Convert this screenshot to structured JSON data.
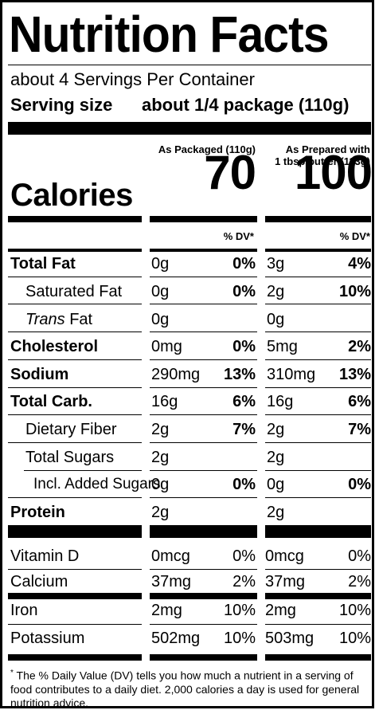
{
  "title": "Nutrition Facts",
  "servings_per_container": "about 4 Servings Per Container",
  "serving_size_label": "Serving size",
  "serving_size_value": "about 1/4 package (110g)",
  "col1_header": "As Packaged (110g)",
  "col2_header_line1": "As Prepared with",
  "col2_header_line2": "1 tbsp butter (113g)",
  "calories_label": "Calories",
  "calories_col1": "70",
  "calories_col2": "100",
  "dv_header": "% DV*",
  "nutrients": [
    {
      "name": "Total Fat",
      "v1": "0g",
      "d1": "0%",
      "v2": "3g",
      "d2": "4%"
    },
    {
      "name": "Saturated Fat",
      "v1": "0g",
      "d1": "0%",
      "v2": "2g",
      "d2": "10%"
    },
    {
      "name_italic": "Trans",
      "name_rest": " Fat",
      "v1": "0g",
      "d1": "",
      "v2": "0g",
      "d2": ""
    },
    {
      "name": "Cholesterol",
      "v1": "0mg",
      "d1": "0%",
      "v2": "5mg",
      "d2": "2%"
    },
    {
      "name": "Sodium",
      "v1": "290mg",
      "d1": "13%",
      "v2": "310mg",
      "d2": "13%"
    },
    {
      "name": "Total Carb.",
      "v1": "16g",
      "d1": "6%",
      "v2": "16g",
      "d2": "6%"
    },
    {
      "name": "Dietary Fiber",
      "v1": "2g",
      "d1": "7%",
      "v2": "2g",
      "d2": "7%"
    },
    {
      "name": "Total Sugars",
      "v1": "2g",
      "d1": "",
      "v2": "2g",
      "d2": ""
    },
    {
      "name": "Incl. Added Sugars",
      "v1": "0g",
      "d1": "0%",
      "v2": "0g",
      "d2": "0%"
    },
    {
      "name": "Protein",
      "v1": "2g",
      "d1": "",
      "v2": "2g",
      "d2": ""
    }
  ],
  "vitamins": [
    {
      "name": "Vitamin D",
      "v1": "0mcg",
      "d1": "0%",
      "v2": "0mcg",
      "d2": "0%"
    },
    {
      "name": "Calcium",
      "v1": "37mg",
      "d1": "2%",
      "v2": "37mg",
      "d2": "2%"
    },
    {
      "name": "Iron",
      "v1": "2mg",
      "d1": "10%",
      "v2": "2mg",
      "d2": "10%"
    },
    {
      "name": "Potassium",
      "v1": "502mg",
      "d1": "10%",
      "v2": "503mg",
      "d2": "10%"
    }
  ],
  "footnote_star": "*",
  "footnote": "The % Daily Value (DV) tells you how much a nutrient in a serving of food contributes to a daily diet. 2,000 calories a day is used for general nutrition advice."
}
